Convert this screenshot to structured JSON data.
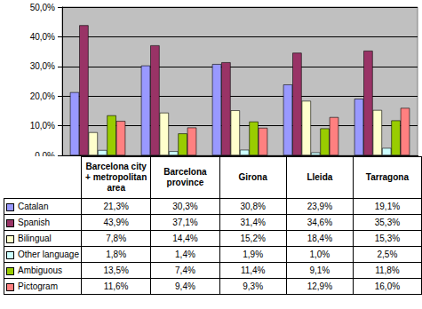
{
  "chart_data": {
    "type": "bar",
    "categories": [
      "Barcelona city + metropolitan area",
      "Barcelona province",
      "Girona",
      "Lleida",
      "Tarragona"
    ],
    "series": [
      {
        "name": "Catalan",
        "color": "#9999ff",
        "values": [
          21.3,
          30.3,
          30.8,
          23.9,
          19.1
        ],
        "value_labels": [
          "21,3%",
          "30,3%",
          "30,8%",
          "23,9%",
          "19,1%"
        ]
      },
      {
        "name": "Spanish",
        "color": "#993366",
        "values": [
          43.9,
          37.1,
          31.4,
          34.6,
          35.3
        ],
        "value_labels": [
          "43,9%",
          "37,1%",
          "31,4%",
          "34,6%",
          "35,3%"
        ]
      },
      {
        "name": "Bilingual",
        "color": "#ffffcc",
        "values": [
          7.8,
          14.4,
          15.2,
          18.4,
          15.3
        ],
        "value_labels": [
          "7,8%",
          "14,4%",
          "15,2%",
          "18,4%",
          "15,3%"
        ]
      },
      {
        "name": "Other language",
        "color": "#ccffff",
        "values": [
          1.8,
          1.4,
          1.9,
          1.0,
          2.5
        ],
        "value_labels": [
          "1,8%",
          "1,4%",
          "1,9%",
          "1,0%",
          "2,5%"
        ]
      },
      {
        "name": "Ambiguous",
        "color": "#99cc00",
        "values": [
          13.5,
          7.4,
          11.4,
          9.1,
          11.8
        ],
        "value_labels": [
          "13,5%",
          "7,4%",
          "11,4%",
          "9,1%",
          "11,8%"
        ]
      },
      {
        "name": "Pictogram",
        "color": "#ff8080",
        "values": [
          11.6,
          9.4,
          9.3,
          12.9,
          16.0
        ],
        "value_labels": [
          "11,6%",
          "9,4%",
          "9,3%",
          "12,9%",
          "16,0%"
        ]
      }
    ],
    "ylim": [
      0,
      50
    ],
    "yticks": [
      {
        "value": 0,
        "label": "0,0%"
      },
      {
        "value": 10,
        "label": "10,0%"
      },
      {
        "value": 20,
        "label": "20,0%"
      },
      {
        "value": 30,
        "label": "30,0%"
      },
      {
        "value": 40,
        "label": "40,0%"
      },
      {
        "value": 50,
        "label": "50,0%"
      }
    ],
    "grid": true,
    "tick_labels": "y"
  }
}
